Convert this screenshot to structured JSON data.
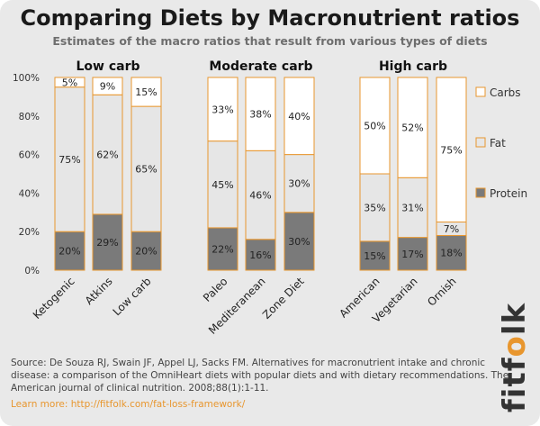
{
  "title": "Comparing Diets by Macronutrient ratios",
  "subtitle": "Estimates of the macro ratios that result from various types of diets",
  "chart_data": {
    "type": "bar",
    "stacked": true,
    "categories": [
      "Ketogenic",
      "Atkins",
      "Low carb",
      "Paleo",
      "Mediteranean",
      "Zone Diet",
      "American",
      "Vegetarian",
      "Ornish"
    ],
    "groups": [
      {
        "label": "Low carb",
        "members": [
          "Ketogenic",
          "Atkins",
          "Low carb"
        ]
      },
      {
        "label": "Moderate carb",
        "members": [
          "Paleo",
          "Mediteranean",
          "Zone Diet"
        ]
      },
      {
        "label": "High carb",
        "members": [
          "American",
          "Vegetarian",
          "Ornish"
        ]
      }
    ],
    "series": [
      {
        "name": "Protein",
        "values": [
          20,
          29,
          20,
          22,
          16,
          30,
          15,
          17,
          18
        ],
        "color": "#7a7a7a"
      },
      {
        "name": "Fat",
        "values": [
          75,
          62,
          65,
          45,
          46,
          30,
          35,
          31,
          7
        ],
        "color": "#e6e6e6"
      },
      {
        "name": "Carbs",
        "values": [
          5,
          9,
          15,
          33,
          38,
          40,
          50,
          52,
          75
        ],
        "color": "#ffffff"
      }
    ],
    "y_ticks": [
      "0%",
      "20%",
      "40%",
      "60%",
      "80%",
      "100%"
    ],
    "ylim": [
      0,
      100
    ],
    "legend": [
      "Carbs",
      "Fat",
      "Protein"
    ],
    "legend_position": "right",
    "bar_border_color": "#e8962e",
    "grid": false
  },
  "source_text": "Source:  De Souza RJ, Swain JF, Appel LJ, Sacks FM. Alternatives for macronutrient intake and chronic disease: a comparison of the OmniHeart diets with popular diets and with dietary recommendations. The American journal of clinical nutrition. 2008;88(1):1-11.",
  "learn_more": "Learn more: http://fitfolk.com/fat-loss-framework/",
  "brand": {
    "part1": "fitf",
    "part2": "o",
    "part3": "lk"
  }
}
